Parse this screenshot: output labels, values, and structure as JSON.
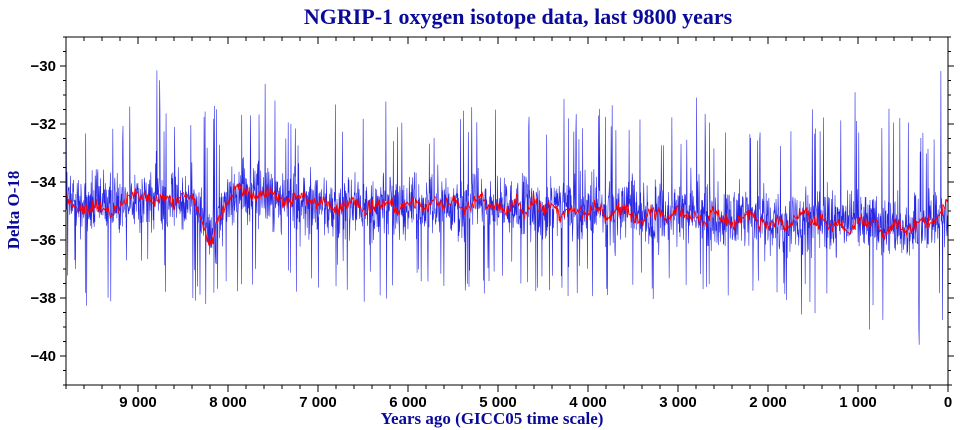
{
  "chart_data": {
    "type": "line",
    "title": "NGRIP-1 oxygen isotope data, last 9800 years",
    "xlabel": "Years ago (GICC05 time scale)",
    "ylabel": "Delta O-18",
    "xlim": [
      9800,
      0
    ],
    "ylim": [
      -41,
      -29
    ],
    "x_ticks": [
      9000,
      8000,
      7000,
      6000,
      5000,
      4000,
      3000,
      2000,
      1000,
      0
    ],
    "x_tick_labels": [
      "9 000",
      "8 000",
      "7 000",
      "6 000",
      "5 000",
      "4 000",
      "3 000",
      "2 000",
      "1 000",
      "0"
    ],
    "y_ticks": [
      -30,
      -32,
      -34,
      -36,
      -38,
      -40
    ],
    "y_tick_labels": [
      "−30",
      "−32",
      "−34",
      "−36",
      "−38",
      "−40"
    ],
    "grid": false,
    "series": [
      {
        "color": "#0000e0",
        "style": "raw annual values",
        "x": [
          9800,
          9600,
          9400,
          9200,
          9000,
          8800,
          8600,
          8400,
          8200,
          8000,
          7800,
          7600,
          7400,
          7200,
          7000,
          6800,
          6600,
          6400,
          6200,
          6000,
          5800,
          5600,
          5400,
          5200,
          5000,
          4800,
          4600,
          4400,
          4200,
          4000,
          3800,
          3600,
          3400,
          3200,
          3000,
          2800,
          2600,
          2400,
          2200,
          2000,
          1800,
          1600,
          1400,
          1200,
          1000,
          800,
          600,
          400,
          200,
          0
        ],
        "values": [
          -34.6,
          -34.9,
          -34.7,
          -34.6,
          -34.5,
          -34.6,
          -34.7,
          -34.6,
          -35.6,
          -34.5,
          -34.3,
          -34.4,
          -34.6,
          -34.7,
          -34.8,
          -34.9,
          -34.7,
          -34.9,
          -34.8,
          -34.7,
          -34.8,
          -34.8,
          -34.9,
          -34.7,
          -34.9,
          -34.9,
          -35.0,
          -34.8,
          -34.9,
          -34.9,
          -35.0,
          -35.0,
          -35.1,
          -35.2,
          -35.1,
          -35.0,
          -35.2,
          -35.3,
          -35.2,
          -35.3,
          -35.4,
          -35.3,
          -35.4,
          -35.5,
          -35.3,
          -35.3,
          -35.5,
          -35.6,
          -35.4,
          -35.0
        ],
        "min": [
          -37.4,
          -38.2,
          -38.9,
          -38.2,
          -37.6,
          -37.8,
          -38.1,
          -38.6,
          -38.3,
          -38.1,
          -37.8,
          -38.0,
          -37.8,
          -38.2,
          -37.9,
          -37.8,
          -38.2,
          -38.3,
          -38.0,
          -37.9,
          -38.1,
          -37.9,
          -37.8,
          -38.0,
          -38.1,
          -37.9,
          -38.0,
          -38.2,
          -38.0,
          -38.1,
          -38.0,
          -37.9,
          -38.3,
          -38.3,
          -38.0,
          -38.4,
          -38.2,
          -38.7,
          -38.3,
          -38.5,
          -38.4,
          -38.8,
          -38.5,
          -38.7,
          -39.0,
          -39.3,
          -38.9,
          -39.9,
          -40.3,
          -38.6
        ],
        "max": [
          -32.3,
          -32.2,
          -30.8,
          -31.5,
          -31.3,
          -30.0,
          -31.9,
          -31.7,
          -31.2,
          -31.6,
          -31.4,
          -30.5,
          -31.3,
          -31.7,
          -31.5,
          -30.9,
          -31.8,
          -31.0,
          -31.2,
          -31.4,
          -31.5,
          -30.4,
          -31.1,
          -30.8,
          -31.6,
          -31.2,
          -31.0,
          -31.4,
          -30.9,
          -31.7,
          -31.1,
          -31.7,
          -31.3,
          -31.6,
          -31.4,
          -31.0,
          -31.8,
          -31.7,
          -32.0,
          -31.8,
          -31.5,
          -31.6,
          -31.2,
          -31.8,
          -30.7,
          -31.3,
          -31.5,
          -31.6,
          -31.4,
          -29.2
        ]
      },
      {
        "color": "#ff0000",
        "style": "smoothed",
        "x": [
          9800,
          9700,
          9600,
          9500,
          9400,
          9300,
          9200,
          9100,
          9000,
          8900,
          8800,
          8700,
          8600,
          8500,
          8400,
          8300,
          8200,
          8100,
          8000,
          7900,
          7800,
          7700,
          7600,
          7500,
          7400,
          7300,
          7200,
          7100,
          7000,
          6900,
          6800,
          6700,
          6600,
          6500,
          6400,
          6300,
          6200,
          6100,
          6000,
          5900,
          5800,
          5700,
          5600,
          5500,
          5400,
          5300,
          5200,
          5100,
          5000,
          4900,
          4800,
          4700,
          4600,
          4500,
          4400,
          4300,
          4200,
          4100,
          4000,
          3900,
          3800,
          3700,
          3600,
          3500,
          3400,
          3300,
          3200,
          3100,
          3000,
          2900,
          2800,
          2700,
          2600,
          2500,
          2400,
          2300,
          2200,
          2100,
          2000,
          1900,
          1800,
          1700,
          1600,
          1500,
          1400,
          1300,
          1200,
          1100,
          1000,
          900,
          800,
          700,
          600,
          500,
          400,
          300,
          200,
          100,
          0
        ],
        "values": [
          -34.5,
          -34.9,
          -35.0,
          -34.8,
          -34.9,
          -35.1,
          -34.8,
          -34.5,
          -34.4,
          -34.6,
          -34.7,
          -34.5,
          -34.8,
          -34.4,
          -34.5,
          -35.3,
          -36.2,
          -35.2,
          -34.8,
          -34.1,
          -34.3,
          -34.5,
          -34.4,
          -34.3,
          -34.7,
          -34.6,
          -34.5,
          -34.6,
          -34.8,
          -34.7,
          -35.0,
          -34.8,
          -34.6,
          -35.0,
          -34.9,
          -34.8,
          -34.7,
          -35.0,
          -34.6,
          -34.7,
          -34.9,
          -34.6,
          -34.8,
          -34.5,
          -35.0,
          -34.8,
          -34.5,
          -34.9,
          -34.8,
          -35.0,
          -34.7,
          -35.1,
          -34.6,
          -35.0,
          -34.8,
          -35.2,
          -34.9,
          -35.0,
          -35.1,
          -34.8,
          -35.3,
          -35.0,
          -34.9,
          -35.2,
          -35.4,
          -35.0,
          -35.1,
          -35.3,
          -34.9,
          -35.2,
          -35.1,
          -35.4,
          -35.0,
          -35.3,
          -35.5,
          -35.2,
          -35.0,
          -35.4,
          -35.6,
          -35.3,
          -35.7,
          -35.2,
          -35.0,
          -35.5,
          -35.3,
          -35.6,
          -35.4,
          -35.8,
          -35.2,
          -35.5,
          -35.3,
          -35.9,
          -35.4,
          -35.6,
          -35.7,
          -35.2,
          -35.5,
          -35.1,
          -34.6
        ]
      }
    ]
  }
}
